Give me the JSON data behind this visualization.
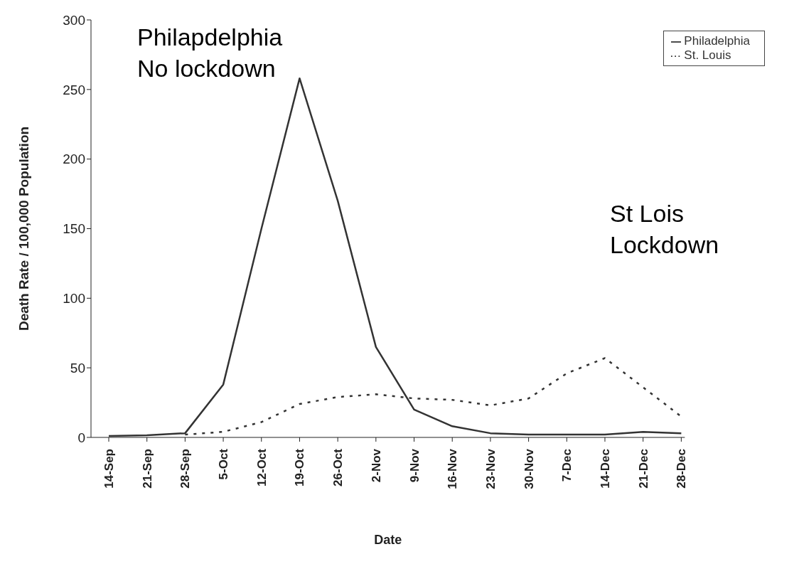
{
  "chart_data": {
    "type": "line",
    "xlabel": "Date",
    "ylabel": "Death Rate / 100,000 Population",
    "categories": [
      "14-Sep",
      "21-Sep",
      "28-Sep",
      "5-Oct",
      "12-Oct",
      "19-Oct",
      "26-Oct",
      "2-Nov",
      "9-Nov",
      "16-Nov",
      "23-Nov",
      "30-Nov",
      "7-Dec",
      "14-Dec",
      "21-Dec",
      "28-Dec"
    ],
    "series": [
      {
        "name": "Philadelphia",
        "color": "#333333",
        "line_style": "solid",
        "values": [
          1,
          1.5,
          3,
          38,
          150,
          258,
          170,
          65,
          20,
          8,
          3,
          2,
          2,
          2,
          4,
          3
        ]
      },
      {
        "name": "St. Louis",
        "color": "#333333",
        "line_style": "dotted",
        "values": [
          null,
          null,
          2,
          4,
          11,
          24,
          29,
          31,
          28,
          27,
          23,
          28,
          46,
          57,
          36,
          15
        ]
      }
    ],
    "ylim": [
      0,
      300
    ],
    "yticks": [
      0,
      50,
      100,
      150,
      200,
      250,
      300
    ],
    "legend": "top right",
    "marker": "none",
    "annotations": [
      "Philapdelphia\nNo lockdown",
      "St Lois\nLockdown"
    ]
  }
}
